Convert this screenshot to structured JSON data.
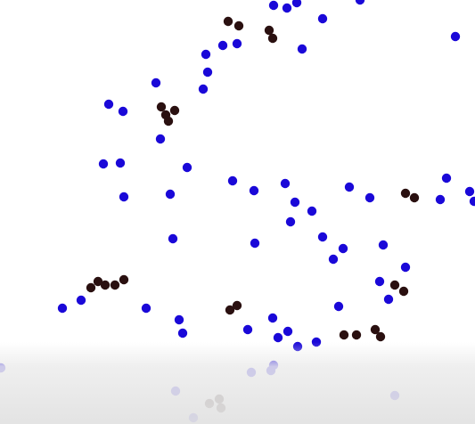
{
  "colors": {
    "background": "#ffffff",
    "blue_dot": "#1a08d8",
    "dark_dot": "#2a1010",
    "bottom_fade": "#e2e2e2"
  },
  "legend": "none",
  "text": "none"
}
